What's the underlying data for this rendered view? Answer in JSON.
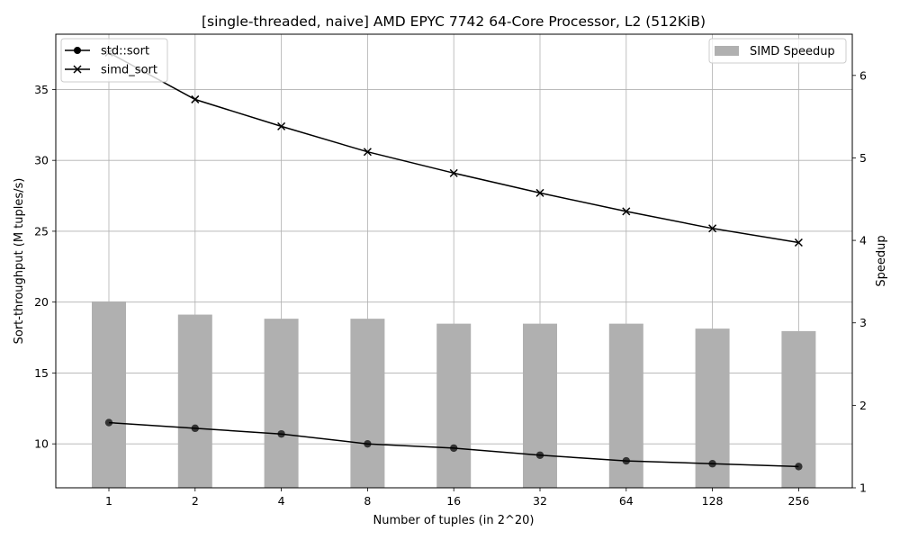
{
  "chart_data": {
    "type": "bar+line",
    "title": "[single-threaded, naive] AMD EPYC 7742 64-Core Processor, L2 (512KiB)",
    "xlabel": "Number of tuples (in 2^20)",
    "ylabel_left": "Sort-throughput (M tuples/s)",
    "ylabel_right": "Speedup",
    "categories": [
      "1",
      "2",
      "4",
      "8",
      "16",
      "32",
      "64",
      "128",
      "256"
    ],
    "left_yticks": [
      10,
      15,
      20,
      25,
      30,
      35
    ],
    "right_yticks": [
      1,
      2,
      3,
      4,
      5,
      6
    ],
    "ylim_left": [
      6.9,
      38.9
    ],
    "ylim_right": [
      1.0,
      6.5
    ],
    "grid": true,
    "bars": {
      "name": "SIMD Speedup",
      "axis": "right",
      "color": "#b0b0b0",
      "values": [
        3.26,
        3.1,
        3.05,
        3.05,
        2.99,
        2.99,
        2.99,
        2.93,
        2.9
      ]
    },
    "series": [
      {
        "name": "std::sort",
        "axis": "left",
        "marker": "circle",
        "color": "#000000",
        "values": [
          11.5,
          11.1,
          10.7,
          10.0,
          9.7,
          9.2,
          8.8,
          8.6,
          8.4
        ]
      },
      {
        "name": "simd_sort",
        "axis": "left",
        "marker": "x",
        "color": "#000000",
        "values": [
          37.6,
          34.3,
          32.4,
          30.6,
          29.1,
          27.7,
          26.4,
          25.2,
          24.2
        ]
      }
    ],
    "legend_left_placement": "top-left",
    "legend_right_placement": "top-right"
  }
}
